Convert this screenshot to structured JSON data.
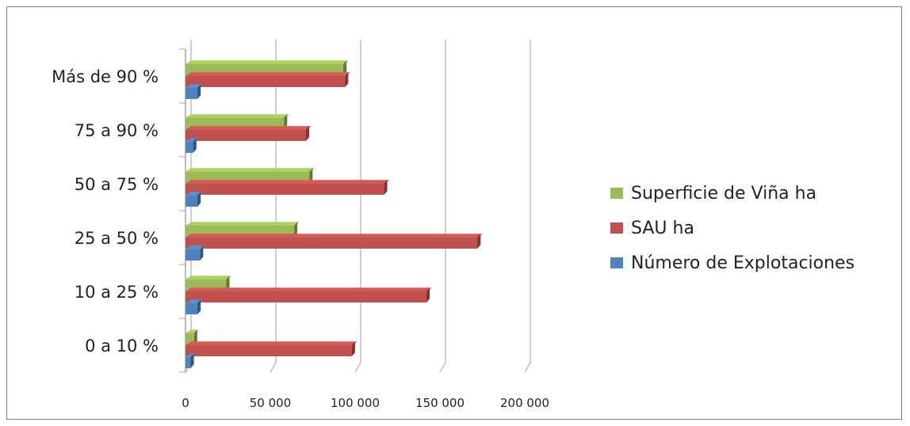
{
  "chart_data": {
    "type": "bar",
    "orientation": "horizontal",
    "style": "3d-clustered",
    "categories": [
      "0 a 10 %",
      "10 a 25 %",
      "25 a 50 %",
      "50 a 75 %",
      "75 a 90 %",
      "Más de 90 %"
    ],
    "series": [
      {
        "name": "Número de Explotaciones",
        "color": "#4f81bd",
        "values": [
          3000,
          7000,
          8500,
          7000,
          4500,
          7000
        ]
      },
      {
        "name": "SAU ha",
        "color": "#c0504d",
        "values": [
          98000,
          142000,
          172000,
          117000,
          71000,
          94000
        ]
      },
      {
        "name": "Superficie de Viña ha",
        "color": "#9bbb59",
        "values": [
          5000,
          24000,
          64000,
          73000,
          58000,
          93000
        ]
      }
    ],
    "xticks": [
      "0",
      "50 000",
      "100 000",
      "150 000",
      "200 000"
    ],
    "xlim": [
      0,
      200000
    ],
    "grid": true,
    "legend_position": "right"
  }
}
